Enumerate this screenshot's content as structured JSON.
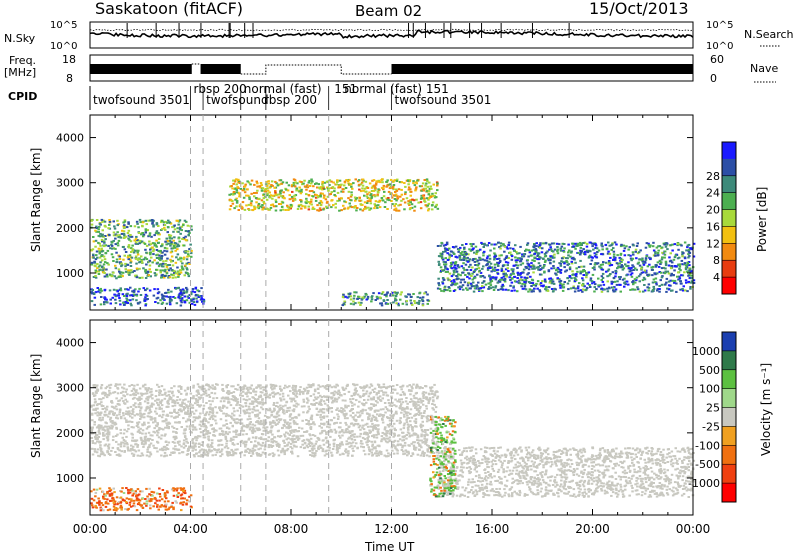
{
  "header": {
    "title": "Saskatoon (fitACF)",
    "beam": "Beam 02",
    "date": "15/Oct/2013"
  },
  "noise_panel": {
    "left_label": "N.Sky",
    "left_ticks": [
      "10^5",
      "10^0"
    ],
    "right_ticks": [
      "10^5",
      "10^0"
    ],
    "right_label": "N.Search"
  },
  "freq_panel": {
    "left_label_1": "Freq.",
    "left_label_2": "[MHz]",
    "left_ticks": [
      "18",
      "8"
    ],
    "right_ticks": [
      "60",
      "0"
    ],
    "right_label": "Nave"
  },
  "cpid": {
    "label": "CPID",
    "segments": [
      {
        "start_h": 0.0,
        "text": "twofsound  3501"
      },
      {
        "start_h": 4.0,
        "text": "rbsp 200"
      },
      {
        "start_h": 4.5,
        "text": "twofsound"
      },
      {
        "start_h": 6.0,
        "text": "normal (fast)"
      },
      {
        "start_h": 6.8,
        "text": "rbsp 200"
      },
      {
        "start_h": 9.6,
        "text": "151"
      },
      {
        "start_h": 10.0,
        "text": "normal (fast)  151"
      },
      {
        "start_h": 12.0,
        "text": "twofsound  3501"
      }
    ],
    "boundaries_h": [
      4.0,
      4.5,
      6.0,
      7.0,
      9.5,
      12.0
    ]
  },
  "chart_data": [
    {
      "type": "heatmap",
      "title": "Power",
      "ylabel": "Slant Range [km]",
      "xlabel": "Time UT",
      "xlim_hours": [
        0,
        24
      ],
      "ylim_km": [
        180,
        4500
      ],
      "y_ticks": [
        1000,
        2000,
        3000,
        4000
      ],
      "x_ticks": [
        "00:00",
        "04:00",
        "08:00",
        "12:00",
        "16:00",
        "20:00",
        "00:00"
      ],
      "colorbar": {
        "label": "Power [dB]",
        "ticks": [
          "4",
          "8",
          "12",
          "16",
          "20",
          "24",
          "28"
        ],
        "colors": [
          "#1a1aff",
          "#2c4fa6",
          "#3d8a7a",
          "#4caf50",
          "#a8d93a",
          "#f2c010",
          "#f28a10",
          "#e83c10",
          "#ff0000"
        ]
      },
      "regions": [
        {
          "name": "near-range echo band",
          "t_start": 0.0,
          "t_end": 4.5,
          "r_start": 300,
          "r_end": 700,
          "power_db": 26
        },
        {
          "name": "rising arc",
          "t_start": 0.0,
          "t_end": 4.0,
          "r_start": 900,
          "r_end": 2200,
          "power_db": 20
        },
        {
          "name": "upper band",
          "t_start": 5.5,
          "t_end": 13.8,
          "r_start": 2400,
          "r_end": 3100,
          "power_db": 14
        },
        {
          "name": "afternoon echoes",
          "t_start": 13.8,
          "t_end": 24.0,
          "r_start": 600,
          "r_end": 1700,
          "power_db": 24
        },
        {
          "name": "near-range noon band",
          "t_start": 10.0,
          "t_end": 13.5,
          "r_start": 300,
          "r_end": 600,
          "power_db": 22
        }
      ]
    },
    {
      "type": "heatmap",
      "title": "Velocity",
      "ylabel": "Slant Range [km]",
      "xlabel": "Time UT",
      "xlim_hours": [
        0,
        24
      ],
      "ylim_km": [
        180,
        4500
      ],
      "y_ticks": [
        1000,
        2000,
        3000,
        4000
      ],
      "x_ticks": [
        "00:00",
        "04:00",
        "08:00",
        "12:00",
        "16:00",
        "20:00",
        "00:00"
      ],
      "colorbar": {
        "label": "Velocity  [m s⁻¹]",
        "ticks": [
          "1000",
          "500",
          "100",
          "25",
          "-25",
          "-100",
          "-500",
          "-1000"
        ],
        "colors": [
          "#1b3fb0",
          "#2f7a4a",
          "#5cc040",
          "#9fd88a",
          "#c8c8c0",
          "#f0a020",
          "#f07010",
          "#f04010",
          "#ff0000"
        ]
      },
      "regions": [
        {
          "name": "near-range flow",
          "t_start": 0.0,
          "t_end": 4.0,
          "r_start": 300,
          "r_end": 800,
          "velocity": -200
        },
        {
          "name": "ground scatter arc",
          "t_start": 0.0,
          "t_end": 13.8,
          "r_start": 1500,
          "r_end": 3100,
          "velocity": 0
        },
        {
          "name": "afternoon ground scatter",
          "t_start": 13.8,
          "t_end": 24.0,
          "r_start": 600,
          "r_end": 1700,
          "velocity": 0
        },
        {
          "name": "transition flows",
          "t_start": 13.5,
          "t_end": 14.5,
          "r_start": 600,
          "r_end": 2400,
          "velocity": 100
        }
      ]
    }
  ]
}
